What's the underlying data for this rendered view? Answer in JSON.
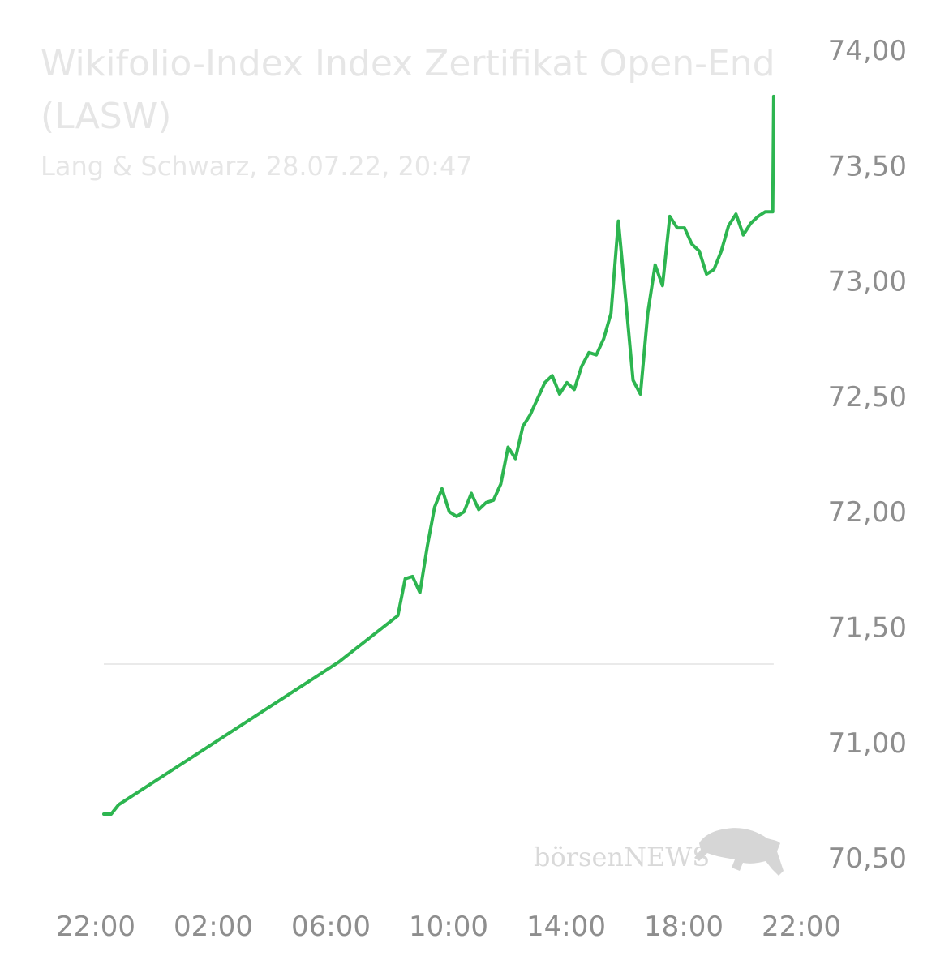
{
  "chart_data": {
    "type": "line",
    "title": "Wikifolio-Index Index Zertifikat Open-End",
    "title_line2": "(LASW)",
    "subtitle": "Lang & Schwarz, 28.07.22, 20:47",
    "x_tick_labels": [
      "22:00",
      "02:00",
      "06:00",
      "10:00",
      "14:00",
      "18:00",
      "22:00"
    ],
    "y_tick_labels": [
      "74,00",
      "73,50",
      "73,00",
      "72,50",
      "72,00",
      "71,50",
      "71,00",
      "70,50"
    ],
    "y_ticks": [
      74.0,
      73.5,
      73.0,
      72.5,
      72.0,
      71.5,
      71.0,
      70.5
    ],
    "ylim": [
      70.3,
      74.1
    ],
    "reference_line": 71.34,
    "line_color": "#2db550",
    "grid": false,
    "legend": "none",
    "watermark": "börsenNEWS",
    "series": [
      {
        "x": [
          "22:00",
          "22:15",
          "22:30",
          "06:00",
          "08:00",
          "08:15",
          "08:30",
          "08:45",
          "09:00",
          "09:15",
          "09:30",
          "09:45",
          "10:00",
          "10:15",
          "10:30",
          "10:45",
          "11:00",
          "11:15",
          "11:30",
          "11:45",
          "12:00",
          "12:15",
          "12:30",
          "12:45",
          "13:00",
          "13:15",
          "13:30",
          "13:45",
          "14:00",
          "14:15",
          "14:30",
          "14:45",
          "15:00",
          "15:15",
          "15:30",
          "15:45",
          "16:00",
          "16:15",
          "16:30",
          "16:45",
          "17:00",
          "17:15",
          "17:30",
          "17:45",
          "18:00",
          "18:15",
          "18:30",
          "18:45",
          "19:00",
          "19:15",
          "19:30",
          "19:45",
          "20:00",
          "20:15",
          "20:30",
          "20:45",
          "20:47"
        ],
        "values": [
          70.69,
          70.69,
          70.73,
          71.35,
          71.55,
          71.71,
          71.72,
          71.65,
          71.85,
          72.02,
          72.1,
          72.0,
          71.98,
          72.0,
          72.08,
          72.01,
          72.04,
          72.05,
          72.12,
          72.28,
          72.23,
          72.37,
          72.42,
          72.49,
          72.56,
          72.59,
          72.51,
          72.56,
          72.53,
          72.63,
          72.69,
          72.68,
          72.75,
          72.86,
          73.26,
          72.92,
          72.57,
          72.51,
          72.86,
          73.07,
          72.98,
          73.28,
          73.23,
          73.23,
          73.16,
          73.13,
          73.03,
          73.05,
          73.13,
          73.24,
          73.29,
          73.2,
          73.25,
          73.28,
          73.3,
          73.3,
          73.8
        ]
      }
    ]
  }
}
